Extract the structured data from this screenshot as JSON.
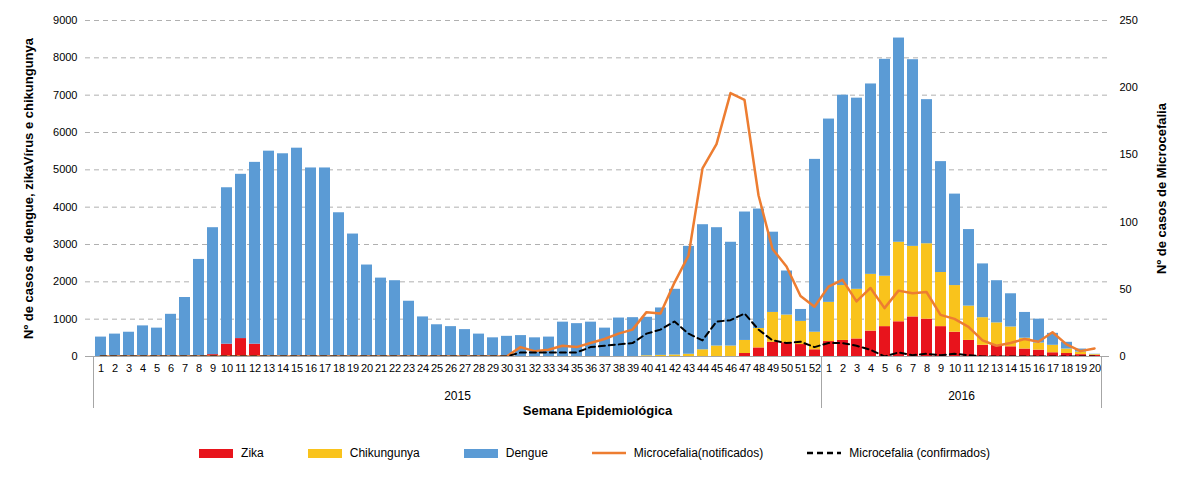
{
  "chart_data": {
    "type": "bar",
    "stacked": true,
    "grid": true,
    "legend": "bottom",
    "x_label": "Semana Epidemiológica",
    "y_label": "Nº de casos de dengue, zikaVírus e chikungunya",
    "y2_label": "Nº de casos de Microcefalia",
    "categories": [
      "1",
      "2",
      "3",
      "4",
      "5",
      "6",
      "7",
      "8",
      "9",
      "10",
      "11",
      "12",
      "13",
      "14",
      "15",
      "16",
      "17",
      "18",
      "19",
      "20",
      "21",
      "22",
      "23",
      "24",
      "25",
      "26",
      "27",
      "28",
      "29",
      "30",
      "31",
      "32",
      "33",
      "34",
      "35",
      "36",
      "37",
      "38",
      "39",
      "40",
      "41",
      "42",
      "43",
      "44",
      "45",
      "46",
      "47",
      "48",
      "49",
      "50",
      "51",
      "52",
      "1",
      "2",
      "3",
      "4",
      "5",
      "6",
      "7",
      "8",
      "9",
      "10",
      "11",
      "12",
      "13",
      "14",
      "15",
      "16",
      "17",
      "18",
      "19",
      "20"
    ],
    "years": [
      "2015",
      "2015",
      "2015",
      "2015",
      "2015",
      "2015",
      "2015",
      "2015",
      "2015",
      "2015",
      "2015",
      "2015",
      "2015",
      "2015",
      "2015",
      "2015",
      "2015",
      "2015",
      "2015",
      "2015",
      "2015",
      "2015",
      "2015",
      "2015",
      "2015",
      "2015",
      "2015",
      "2015",
      "2015",
      "2015",
      "2015",
      "2015",
      "2015",
      "2015",
      "2015",
      "2015",
      "2015",
      "2015",
      "2015",
      "2015",
      "2015",
      "2015",
      "2015",
      "2015",
      "2015",
      "2015",
      "2015",
      "2015",
      "2015",
      "2015",
      "2015",
      "2015",
      "2016",
      "2016",
      "2016",
      "2016",
      "2016",
      "2016",
      "2016",
      "2016",
      "2016",
      "2016",
      "2016",
      "2016",
      "2016",
      "2016",
      "2016",
      "2016",
      "2016",
      "2016",
      "2016",
      "2016"
    ],
    "ylim": [
      0,
      9000
    ],
    "yticks": [
      0,
      1000,
      2000,
      3000,
      4000,
      5000,
      6000,
      7000,
      8000,
      9000
    ],
    "y2lim": [
      0,
      250
    ],
    "y2ticks": [
      0,
      50,
      100,
      150,
      200,
      250
    ],
    "series": [
      {
        "name": "Zika",
        "type": "bar",
        "color": "#e8141c",
        "values": [
          0,
          0,
          0,
          0,
          0,
          0,
          0,
          0,
          50,
          330,
          480,
          330,
          0,
          0,
          0,
          0,
          0,
          0,
          0,
          0,
          0,
          0,
          0,
          0,
          0,
          0,
          0,
          0,
          0,
          0,
          0,
          0,
          0,
          0,
          0,
          0,
          0,
          0,
          0,
          0,
          0,
          0,
          0,
          0,
          0,
          0,
          80,
          230,
          380,
          370,
          320,
          180,
          400,
          430,
          470,
          680,
          800,
          930,
          1060,
          1000,
          800,
          650,
          430,
          300,
          300,
          260,
          200,
          170,
          100,
          80,
          50,
          30
        ]
      },
      {
        "name": "Chikungunya",
        "type": "bar",
        "color": "#f9c31c",
        "values": [
          0,
          0,
          0,
          0,
          0,
          0,
          0,
          0,
          0,
          0,
          0,
          0,
          0,
          0,
          0,
          0,
          0,
          0,
          0,
          0,
          0,
          0,
          0,
          0,
          0,
          0,
          0,
          0,
          0,
          0,
          0,
          0,
          0,
          0,
          0,
          0,
          0,
          0,
          0,
          20,
          30,
          40,
          60,
          180,
          280,
          280,
          350,
          520,
          800,
          740,
          620,
          470,
          1050,
          1470,
          1330,
          1520,
          1350,
          2130,
          1890,
          2020,
          1450,
          1250,
          920,
          740,
          600,
          530,
          290,
          190,
          200,
          120,
          70,
          20
        ]
      },
      {
        "name": "Dengue",
        "type": "bar",
        "color": "#5b9bd5",
        "values": [
          520,
          600,
          650,
          820,
          760,
          1130,
          1580,
          2600,
          3400,
          4190,
          4400,
          4870,
          5500,
          5430,
          5580,
          5050,
          5050,
          3850,
          3280,
          2450,
          2100,
          2030,
          1480,
          1060,
          850,
          800,
          720,
          600,
          500,
          540,
          560,
          500,
          520,
          920,
          880,
          920,
          760,
          1030,
          1040,
          1030,
          1270,
          1760,
          2890,
          3350,
          3170,
          2780,
          3440,
          3200,
          2150,
          1180,
          320,
          4630,
          4910,
          5100,
          5120,
          5100,
          5810,
          5470,
          5000,
          3860,
          2970,
          2450,
          2050,
          1440,
          1130,
          890,
          690,
          640,
          320,
          180,
          80,
          10
        ]
      },
      {
        "name": "Microcefalia(notificados)",
        "type": "line",
        "axis": "y2",
        "color": "#ed7d31",
        "line_style": "solid",
        "values": [
          0,
          0,
          0,
          0,
          0,
          0,
          0,
          0,
          0,
          0,
          0,
          0,
          0,
          0,
          0,
          0,
          0,
          0,
          0,
          0,
          0,
          0,
          0,
          0,
          0,
          0,
          0,
          0,
          0,
          0,
          7,
          4,
          5,
          8,
          7,
          10,
          13,
          17,
          20,
          33,
          32,
          55,
          75,
          140,
          158,
          196,
          191,
          120,
          80,
          67,
          45,
          37,
          52,
          57,
          41,
          51,
          36,
          49,
          47,
          48,
          31,
          28,
          22,
          12,
          8,
          10,
          13,
          11,
          18,
          9,
          4,
          6
        ]
      },
      {
        "name": "Microcefalia (confirmados)",
        "type": "line",
        "axis": "y2",
        "color": "#000000",
        "line_style": "dashed",
        "values": [
          0,
          0,
          0,
          0,
          0,
          0,
          0,
          0,
          0,
          0,
          0,
          0,
          0,
          0,
          0,
          0,
          0,
          0,
          0,
          0,
          0,
          0,
          0,
          0,
          0,
          0,
          0,
          0,
          0,
          0,
          3,
          3,
          3,
          3,
          3,
          7,
          8,
          9,
          10,
          17,
          20,
          26,
          17,
          12,
          26,
          27,
          32,
          20,
          12,
          10,
          11,
          7,
          10,
          10,
          8,
          5,
          0,
          3,
          1,
          2,
          1,
          2,
          1,
          0,
          0,
          0,
          0,
          0,
          0,
          0,
          0,
          0
        ]
      }
    ]
  }
}
